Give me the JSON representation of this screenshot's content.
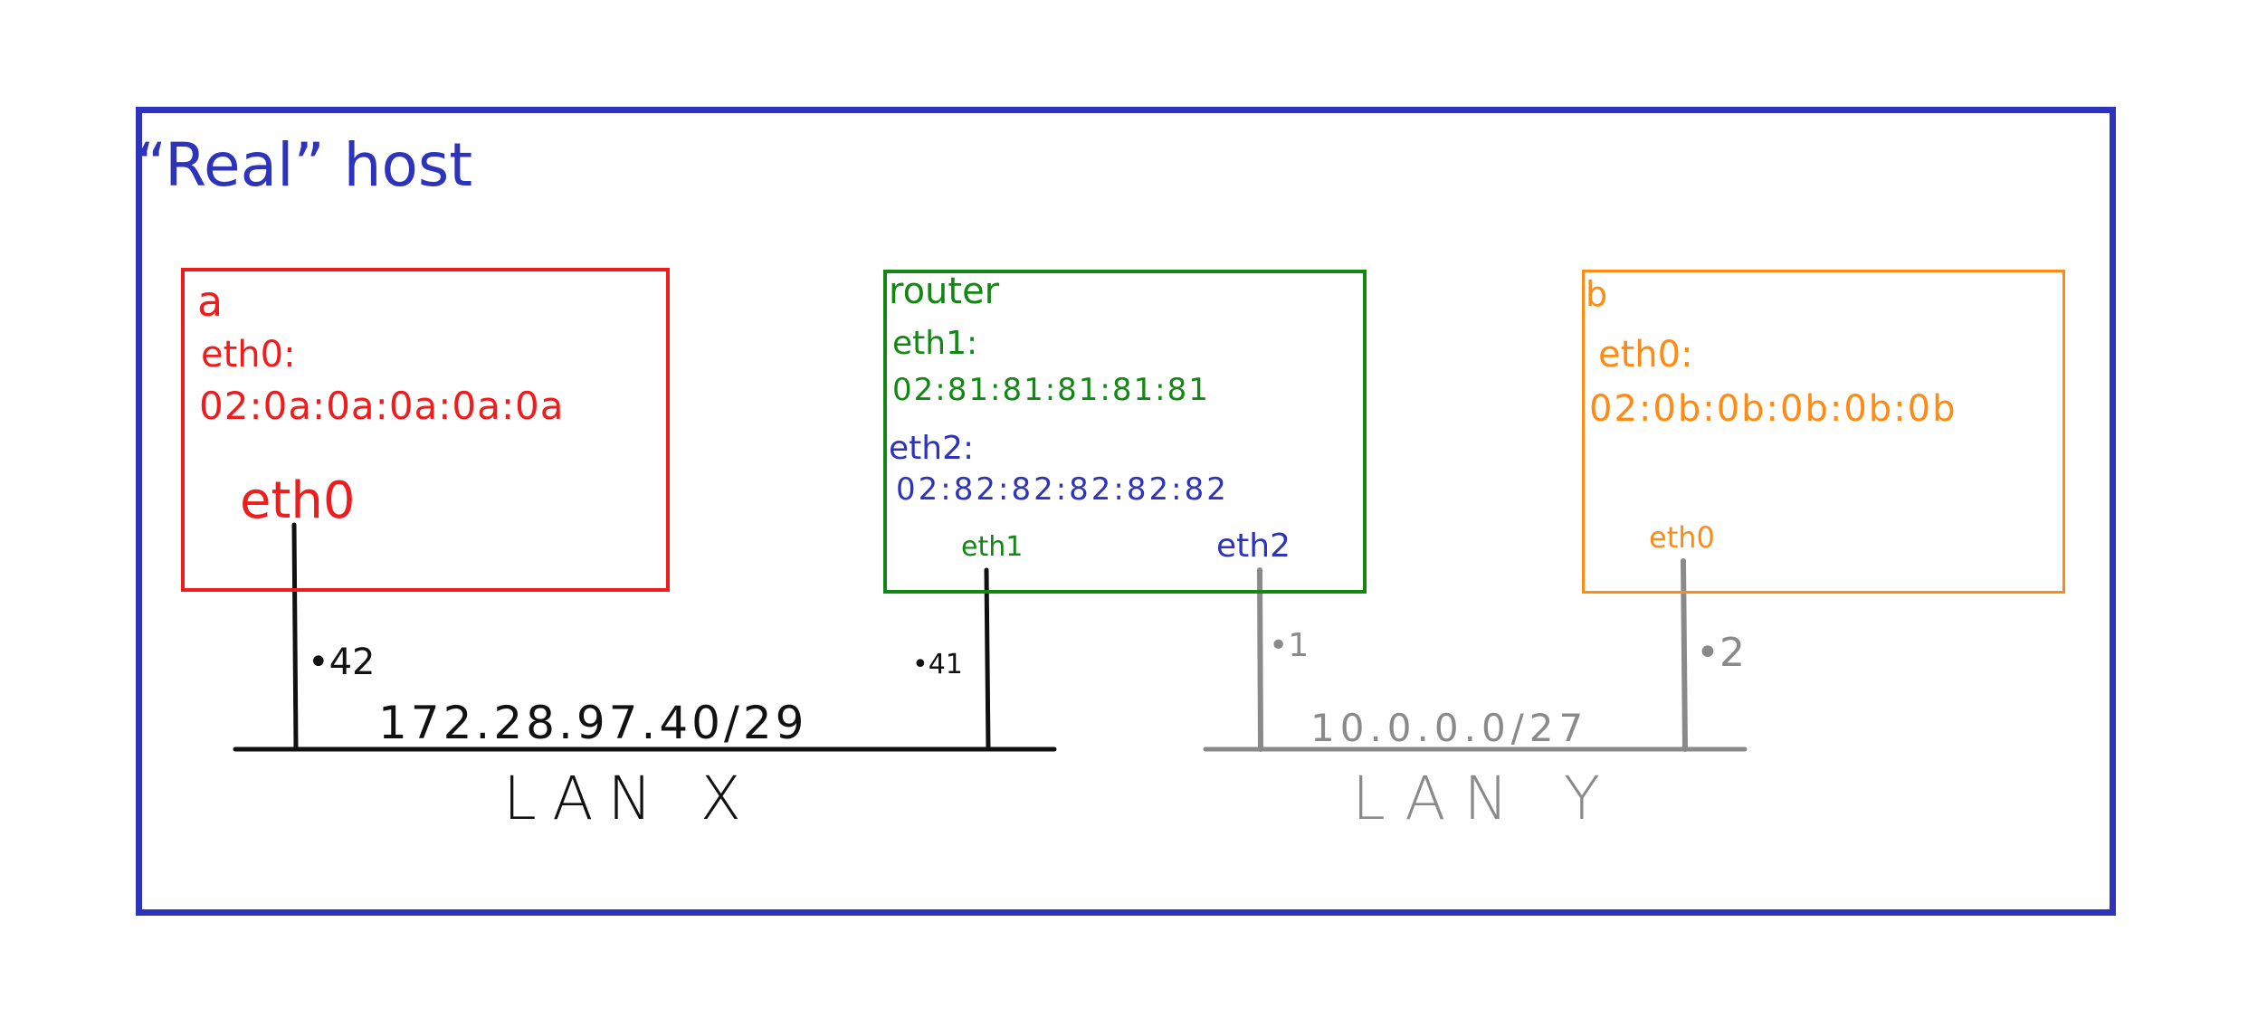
{
  "host": {
    "title": "“Real” host"
  },
  "node_a": {
    "name": "a",
    "iface_heading": "eth0:",
    "mac": "02:0a:0a:0a:0a:0a",
    "port_label": "eth0",
    "color": "#ee1c1c"
  },
  "router": {
    "name": "router",
    "eth1_heading": "eth1:",
    "eth1_mac": "02:81:81:81:81:81",
    "eth2_heading": "eth2:",
    "eth2_mac": "02:82:82:82:82:82",
    "port1_label": "eth1",
    "port2_label": "eth2",
    "color": "#138713",
    "eth2_color": "#2e33bb"
  },
  "node_b": {
    "name": "b",
    "iface_heading": "eth0:",
    "mac": "02:0b:0b:0b:0b:0b",
    "port_label": "eth0",
    "color": "#ff8a14"
  },
  "lan_x": {
    "name": "LAN X",
    "subnet": "172.28.97.40/29",
    "addr_a": "•42",
    "addr_router": "•41",
    "color": "#111111"
  },
  "lan_y": {
    "name": "LAN Y",
    "subnet": "10.0.0.0/27",
    "addr_router": "•1",
    "addr_b": "•2",
    "color": "#8a8a8a"
  },
  "frame_color": "#2e33bb"
}
